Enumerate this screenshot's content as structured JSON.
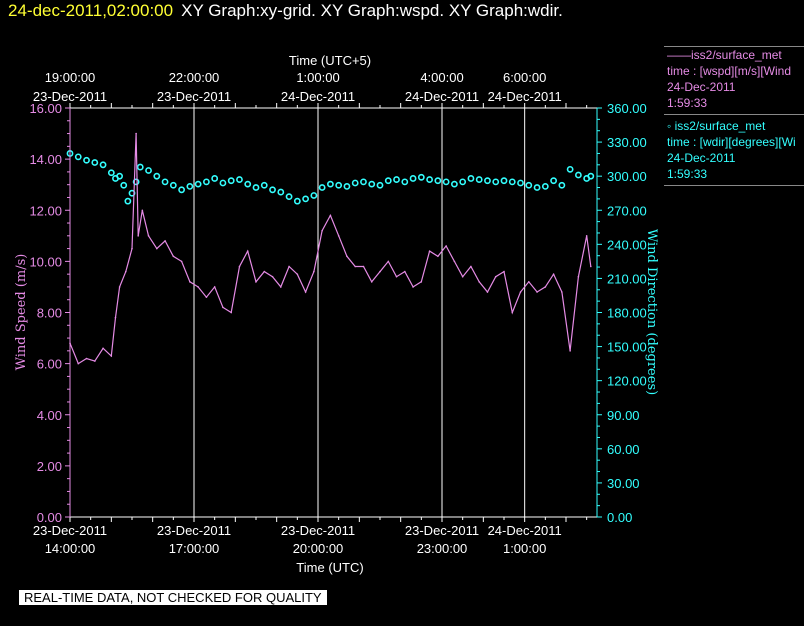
{
  "header": {
    "datetime": "24-dec-2011,02:00:00",
    "title": "XY Graph:xy-grid.  XY Graph:wspd.  XY Graph:wdir."
  },
  "notice": "REAL-TIME DATA, NOT CHECKED FOR QUALITY",
  "legend": [
    {
      "name": "——iss2/surface_met",
      "line2": "time : [wspd][m/s][Wind",
      "line3": "24-Dec-2011",
      "line4": "1:59:33"
    },
    {
      "name": "◦  iss2/surface_met",
      "line2": "time : [wdir][degrees][Wi",
      "line3": "24-Dec-2011",
      "line4": "1:59:33"
    }
  ],
  "colors": {
    "wspd": "#e58be5",
    "wdir": "#33ffff",
    "grid": "#ffffff",
    "left_axis": "#e58be5",
    "right_axis": "#33ffff"
  },
  "chart_data": {
    "type": "line",
    "x_range_utc_hours": [
      14,
      26.75
    ],
    "bottom_axis": {
      "label": "Time (UTC)",
      "ticks": [
        {
          "t": 14,
          "date": "23-Dec-2011",
          "time": "14:00:00"
        },
        {
          "t": 17,
          "date": "23-Dec-2011",
          "time": "17:00:00"
        },
        {
          "t": 20,
          "date": "23-Dec-2011",
          "time": "20:00:00"
        },
        {
          "t": 23,
          "date": "23-Dec-2011",
          "time": "23:00:00"
        },
        {
          "t": 25,
          "date": "24-Dec-2011",
          "time": "1:00:00"
        }
      ]
    },
    "top_axis": {
      "label": "Time (UTC+5)",
      "ticks": [
        {
          "t": 14,
          "time": "19:00:00",
          "date": "23-Dec-2011"
        },
        {
          "t": 17,
          "time": "22:00:00",
          "date": "23-Dec-2011"
        },
        {
          "t": 20,
          "time": "1:00:00",
          "date": "24-Dec-2011"
        },
        {
          "t": 23,
          "time": "4:00:00",
          "date": "24-Dec-2011"
        },
        {
          "t": 25,
          "time": "6:00:00",
          "date": "24-Dec-2011"
        }
      ]
    },
    "left_axis": {
      "label": "Wind Speed (m/s)",
      "range": [
        0,
        16
      ],
      "ticks": [
        "0.00",
        "2.00",
        "4.00",
        "6.00",
        "8.00",
        "10.00",
        "12.00",
        "14.00",
        "16.00"
      ]
    },
    "right_axis": {
      "label": "Wind Direction (degrees)",
      "range": [
        0,
        360
      ],
      "ticks": [
        "0.00",
        "30.00",
        "60.00",
        "90.00",
        "120.00",
        "150.00",
        "180.00",
        "210.00",
        "240.00",
        "270.00",
        "300.00",
        "330.00",
        "360.00"
      ]
    },
    "series": [
      {
        "axis": "left",
        "style": "line",
        "x": [
          14.0,
          14.2,
          14.4,
          14.6,
          14.8,
          15.0,
          15.1,
          15.2,
          15.35,
          15.5,
          15.6,
          15.65,
          15.75,
          15.9,
          16.1,
          16.3,
          16.5,
          16.7,
          16.9,
          17.1,
          17.3,
          17.5,
          17.7,
          17.9,
          18.1,
          18.3,
          18.5,
          18.7,
          18.9,
          19.1,
          19.3,
          19.5,
          19.7,
          19.9,
          20.1,
          20.3,
          20.5,
          20.7,
          20.9,
          21.1,
          21.3,
          21.5,
          21.7,
          21.9,
          22.1,
          22.3,
          22.5,
          22.7,
          22.9,
          23.1,
          23.3,
          23.5,
          23.7,
          23.9,
          24.1,
          24.3,
          24.5,
          24.7,
          24.9,
          25.1,
          25.3,
          25.5,
          25.7,
          25.9,
          26.1,
          26.3,
          26.5,
          26.6
        ],
        "y": [
          6.8,
          6.0,
          6.2,
          6.1,
          6.6,
          6.3,
          7.8,
          9.0,
          9.6,
          10.5,
          15.0,
          11.0,
          12.0,
          11.0,
          10.5,
          10.8,
          10.2,
          10.0,
          9.2,
          9.0,
          8.6,
          9.0,
          8.2,
          8.0,
          9.8,
          10.4,
          9.2,
          9.6,
          9.4,
          9.0,
          9.8,
          9.5,
          8.8,
          9.6,
          11.2,
          11.8,
          11.0,
          10.2,
          9.8,
          9.8,
          9.2,
          9.6,
          10.0,
          9.4,
          9.6,
          9.0,
          9.2,
          10.4,
          10.2,
          10.6,
          10.0,
          9.4,
          9.8,
          9.2,
          8.8,
          9.4,
          9.6,
          8.0,
          8.8,
          9.2,
          8.8,
          9.0,
          9.5,
          8.8,
          6.5,
          9.4,
          11.0,
          9.8
        ]
      },
      {
        "axis": "right",
        "style": "circles",
        "x": [
          14.0,
          14.2,
          14.4,
          14.6,
          14.8,
          15.0,
          15.1,
          15.2,
          15.3,
          15.4,
          15.5,
          15.6,
          15.7,
          15.9,
          16.1,
          16.3,
          16.5,
          16.7,
          16.9,
          17.1,
          17.3,
          17.5,
          17.7,
          17.9,
          18.1,
          18.3,
          18.5,
          18.7,
          18.9,
          19.1,
          19.3,
          19.5,
          19.7,
          19.9,
          20.1,
          20.3,
          20.5,
          20.7,
          20.9,
          21.1,
          21.3,
          21.5,
          21.7,
          21.9,
          22.1,
          22.3,
          22.5,
          22.7,
          22.9,
          23.1,
          23.3,
          23.5,
          23.7,
          23.9,
          24.1,
          24.3,
          24.5,
          24.7,
          24.9,
          25.1,
          25.3,
          25.5,
          25.7,
          25.9,
          26.1,
          26.3,
          26.5,
          26.6
        ],
        "y": [
          320,
          317,
          314,
          312,
          310,
          303,
          298,
          300,
          292,
          278,
          285,
          295,
          308,
          305,
          300,
          295,
          292,
          288,
          291,
          293,
          295,
          298,
          294,
          296,
          297,
          293,
          290,
          292,
          288,
          286,
          282,
          278,
          280,
          283,
          290,
          293,
          292,
          291,
          294,
          295,
          293,
          292,
          296,
          297,
          295,
          298,
          299,
          297,
          296,
          295,
          293,
          295,
          298,
          297,
          296,
          295,
          296,
          295,
          294,
          292,
          290,
          291,
          296,
          292,
          306,
          301,
          298,
          300
        ]
      }
    ]
  }
}
